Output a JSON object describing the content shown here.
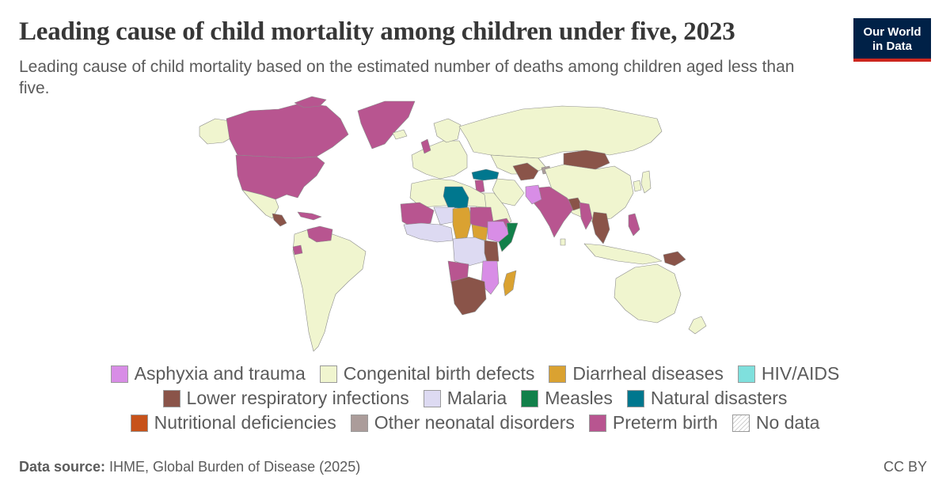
{
  "header": {
    "title": "Leading cause of child mortality among children under five, 2023",
    "subtitle": "Leading cause of child mortality based on the estimated number of deaths among children aged less than five."
  },
  "logo": {
    "line1": "Our World",
    "line2": "in Data"
  },
  "colors": {
    "asphyxia": "#d88de6",
    "congenital": "#f0f5cf",
    "diarrheal": "#daa231",
    "hiv": "#7fe0dd",
    "lower_respiratory": "#8a5449",
    "malaria": "#dddaf2",
    "measles": "#12804a",
    "natural_disasters": "#00778e",
    "nutritional": "#c7521a",
    "other_neonatal": "#ab9c9a",
    "preterm": "#b85590",
    "border": "#8c8c8c"
  },
  "legend": {
    "rows": [
      [
        {
          "label": "Asphyxia and trauma",
          "color": "#d88de6"
        },
        {
          "label": "Congenital birth defects",
          "color": "#f0f5cf"
        },
        {
          "label": "Diarrheal diseases",
          "color": "#daa231"
        },
        {
          "label": "HIV/AIDS",
          "color": "#7fe0dd"
        }
      ],
      [
        {
          "label": "Lower respiratory infections",
          "color": "#8a5449"
        },
        {
          "label": "Malaria",
          "color": "#dddaf2"
        },
        {
          "label": "Measles",
          "color": "#12804a"
        },
        {
          "label": "Natural disasters",
          "color": "#00778e"
        }
      ],
      [
        {
          "label": "Nutritional deficiencies",
          "color": "#c7521a"
        },
        {
          "label": "Other neonatal disorders",
          "color": "#ab9c9a"
        },
        {
          "label": "Preterm birth",
          "color": "#b85590"
        },
        {
          "label": "No data",
          "color": "hatch"
        }
      ]
    ]
  },
  "footer": {
    "source_label": "Data source:",
    "source_text": " IHME, Global Burden of Disease (2025)",
    "license": "CC BY"
  }
}
